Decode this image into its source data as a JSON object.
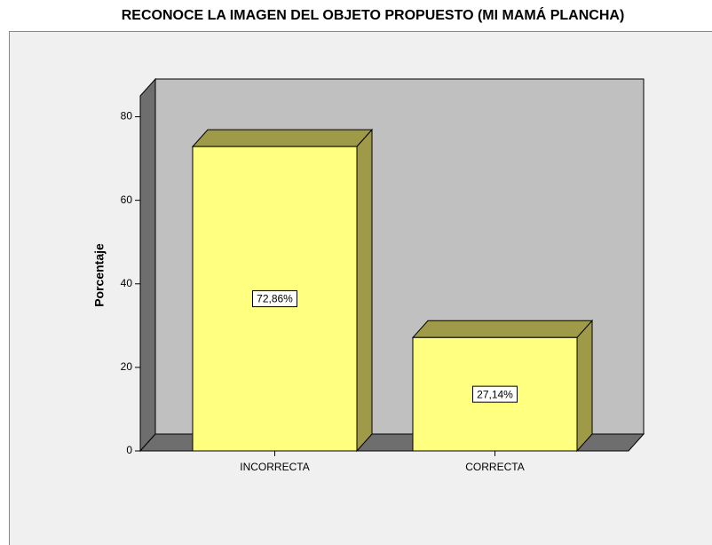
{
  "chart_data": {
    "type": "bar3d",
    "title": "RECONOCE LA IMAGEN DEL OBJETO PROPUESTO (MI MAMÁ PLANCHA)",
    "y_label": "Porcentaje",
    "categories": [
      "INCORRECTA",
      "CORRECTA"
    ],
    "values": [
      72.86,
      27.14
    ],
    "value_labels": [
      "72,86%",
      "27,14%"
    ],
    "color": "#ffff80",
    "ylim": [
      0,
      85
    ],
    "yticks": [
      0,
      20,
      40,
      60,
      80
    ]
  }
}
